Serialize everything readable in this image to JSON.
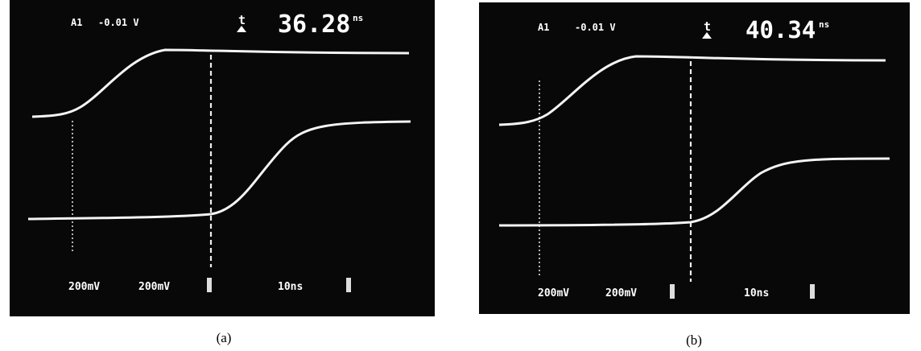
{
  "panels": [
    {
      "channel": "A1",
      "offset": "-0.01 V",
      "delta_symbol": "t",
      "delta": "36.28",
      "delta_unit": "ns",
      "ch1_scale": "200mV",
      "ch2_scale": "200mV",
      "time_scale": "10ns",
      "caption": "(a)"
    },
    {
      "channel": "A1",
      "offset": "-0.01 V",
      "delta_symbol": "t",
      "delta": "40.34",
      "delta_unit": "ns",
      "ch1_scale": "200mV",
      "ch2_scale": "200mV",
      "time_scale": "10ns",
      "caption": "(b)"
    }
  ]
}
